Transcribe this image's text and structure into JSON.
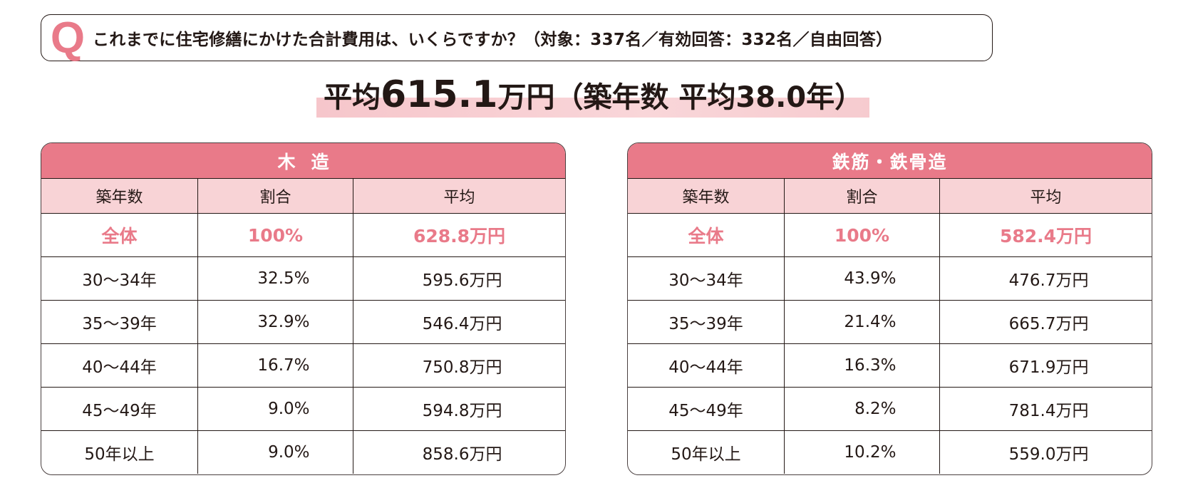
{
  "question": {
    "mark": "Q",
    "text": "これまでに住宅修繕にかけた合計費用は、いくらですか？（対象：337名／有効回答：332名／自由回答）"
  },
  "headline": {
    "label": "平均",
    "value": "615.1",
    "unit": "万円",
    "sub": "（築年数 平均38.0年）"
  },
  "colors": {
    "accent_pink": "#e97a89",
    "header_pink": "#f8d3d6",
    "highlight_band": "#f6c6cb",
    "text": "#231815"
  },
  "tables": {
    "wood": {
      "title": "木造",
      "headers": [
        "築年数",
        "割合",
        "平均"
      ],
      "total": {
        "label": "全体",
        "ratio": "100%",
        "avg": "628.8万円"
      },
      "rows": [
        {
          "label": "30〜34年",
          "ratio": "32.5%",
          "avg": "595.6万円"
        },
        {
          "label": "35〜39年",
          "ratio": "32.9%",
          "avg": "546.4万円"
        },
        {
          "label": "40〜44年",
          "ratio": "16.7%",
          "avg": "750.8万円"
        },
        {
          "label": "45〜49年",
          "ratio": "9.0%",
          "avg": "594.8万円"
        },
        {
          "label": "50年以上",
          "ratio": "9.0%",
          "avg": "858.6万円"
        }
      ]
    },
    "steel": {
      "title": "鉄筋・鉄骨造",
      "headers": [
        "築年数",
        "割合",
        "平均"
      ],
      "total": {
        "label": "全体",
        "ratio": "100%",
        "avg": "582.4万円"
      },
      "rows": [
        {
          "label": "30〜34年",
          "ratio": "43.9%",
          "avg": "476.7万円"
        },
        {
          "label": "35〜39年",
          "ratio": "21.4%",
          "avg": "665.7万円"
        },
        {
          "label": "40〜44年",
          "ratio": "16.3%",
          "avg": "671.9万円"
        },
        {
          "label": "45〜49年",
          "ratio": "8.2%",
          "avg": "781.4万円"
        },
        {
          "label": "50年以上",
          "ratio": "10.2%",
          "avg": "559.0万円"
        }
      ]
    }
  }
}
